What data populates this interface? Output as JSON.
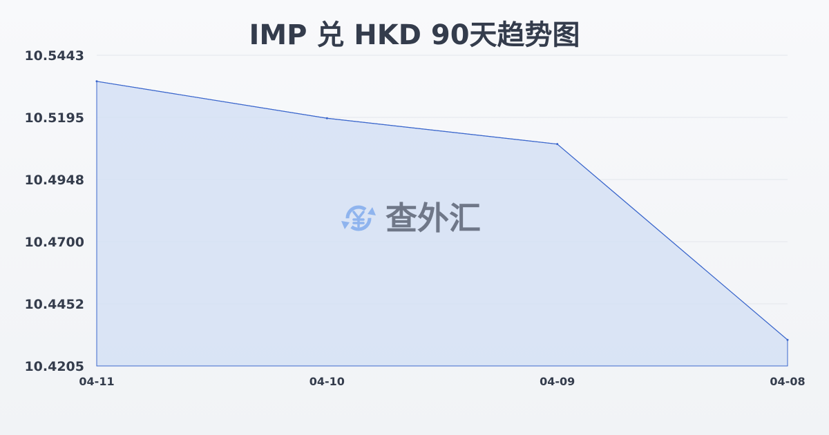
{
  "chart_data": {
    "type": "area",
    "title": "IMP 兑 HKD 90天趋势图",
    "categories": [
      "04-11",
      "04-10",
      "04-09",
      "04-08"
    ],
    "values": [
      10.5339,
      10.5192,
      10.5089,
      10.4309
    ],
    "yticks": [
      "10.5443",
      "10.5195",
      "10.4948",
      "10.4700",
      "10.4452",
      "10.4205"
    ],
    "ylim": [
      10.4205,
      10.5443
    ],
    "grid": true,
    "colors": {
      "line": "#3a66cc",
      "fill": "#d5e0f5",
      "grid": "#e3e6ec"
    }
  },
  "watermark": {
    "text": "查外汇",
    "icon": "yen-exchange-icon"
  }
}
